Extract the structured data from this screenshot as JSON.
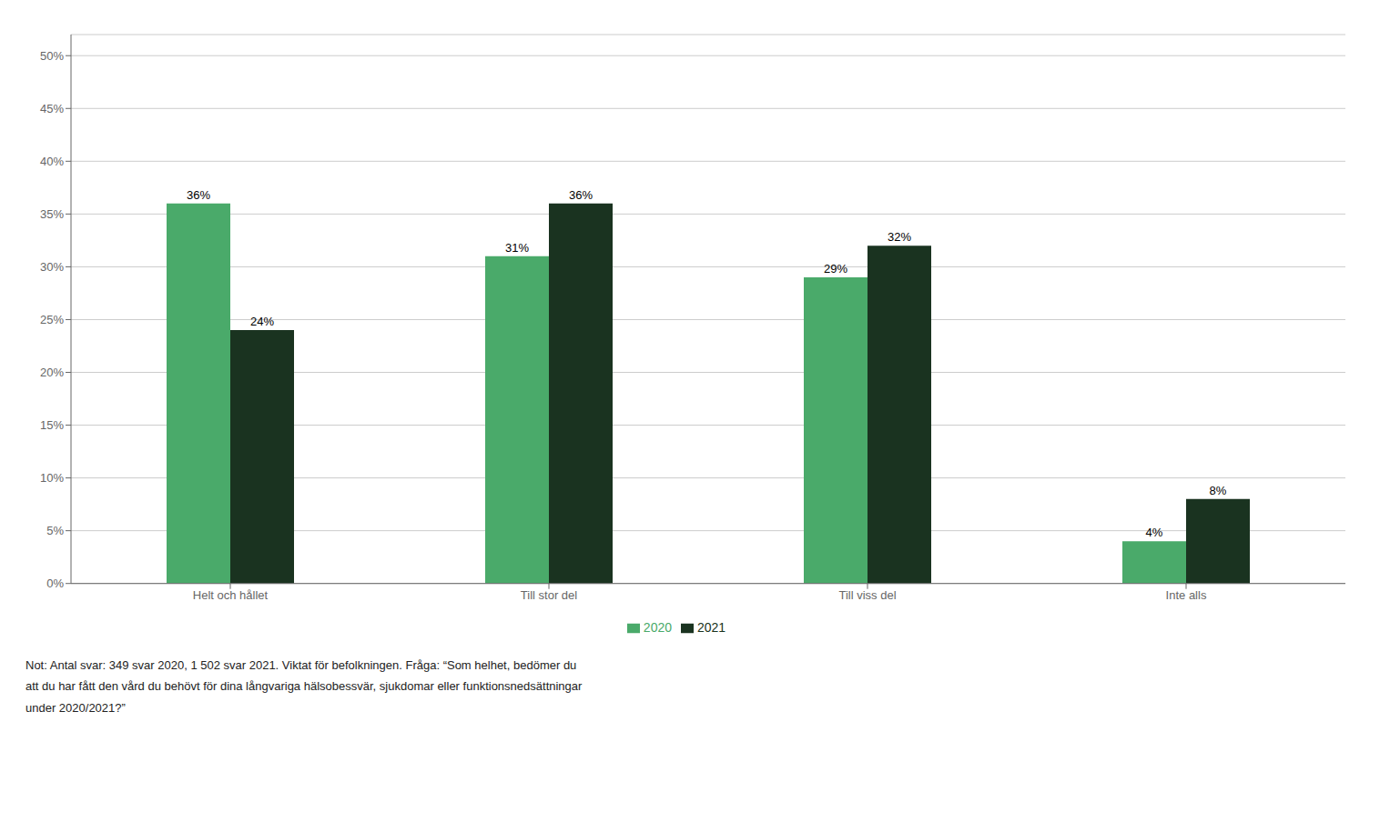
{
  "chart_data": {
    "type": "bar",
    "categories": [
      "Helt och hållet",
      "Till stor del",
      "Till viss del",
      "Inte alls"
    ],
    "series": [
      {
        "name": "2020",
        "color": "#4aaa6a",
        "values": [
          0.36,
          0.31,
          0.29,
          0.04
        ],
        "value_labels": [
          "36%",
          "31%",
          "29%",
          "4%"
        ]
      },
      {
        "name": "2021",
        "color": "#1a3320",
        "values": [
          0.24,
          0.36,
          0.32,
          0.08
        ],
        "value_labels": [
          "24%",
          "36%",
          "32%",
          "8%"
        ]
      }
    ],
    "ylim": [
      0,
      0.52
    ],
    "yticks": [
      {
        "value": 0.0,
        "label": "0%"
      },
      {
        "value": 0.05,
        "label": "5%"
      },
      {
        "value": 0.1,
        "label": "10%"
      },
      {
        "value": 0.15,
        "label": "15%"
      },
      {
        "value": 0.2,
        "label": "20%"
      },
      {
        "value": 0.25,
        "label": "25%"
      },
      {
        "value": 0.3,
        "label": "30%"
      },
      {
        "value": 0.35,
        "label": "35%"
      },
      {
        "value": 0.4,
        "label": "40%"
      },
      {
        "value": 0.45,
        "label": "45%"
      },
      {
        "value": 0.5,
        "label": "50%"
      }
    ],
    "grid": true,
    "legend": "bottom",
    "data_labels": true,
    "annotations": [
      "Not: Antal svar: 349 svar 2020, 1 502 svar 2021. Viktat för befolkningen. Fråga: “Som helhet, bedömer du",
      "att du har fått den vård du behövt för dina långvariga hälsobessvär, sjukdomar eller funktionsnedsättningar",
      "under 2020/2021?”"
    ]
  }
}
